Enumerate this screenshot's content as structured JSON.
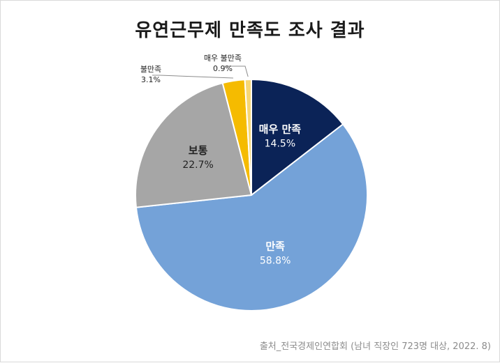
{
  "chart_data": {
    "type": "pie",
    "title": "유연근무제 만족도 조사 결과",
    "start_angle_deg": 0,
    "direction": "clockwise",
    "slices": [
      {
        "label": "매우 만족",
        "value": 14.5,
        "value_label": "14.5%",
        "color": "#0b2357",
        "text_color": "#ffffff",
        "label_position": "inside"
      },
      {
        "label": "만족",
        "value": 58.8,
        "value_label": "58.8%",
        "color": "#74a2d8",
        "text_color": "#ffffff",
        "label_position": "inside"
      },
      {
        "label": "보통",
        "value": 22.7,
        "value_label": "22.7%",
        "color": "#a6a6a6",
        "text_color": "#222222",
        "label_position": "inside"
      },
      {
        "label": "불만족",
        "value": 3.1,
        "value_label": "3.1%",
        "color": "#f5bb00",
        "text_color": "#222222",
        "label_position": "outside-callout"
      },
      {
        "label": "매우 불만족",
        "value": 0.9,
        "value_label": "0.9%",
        "color": "#f7d774",
        "text_color": "#222222",
        "label_position": "outside-callout"
      }
    ]
  },
  "source": "출처_전국경제인연합회 (남녀 직장인 723명 대상, 2022. 8)"
}
